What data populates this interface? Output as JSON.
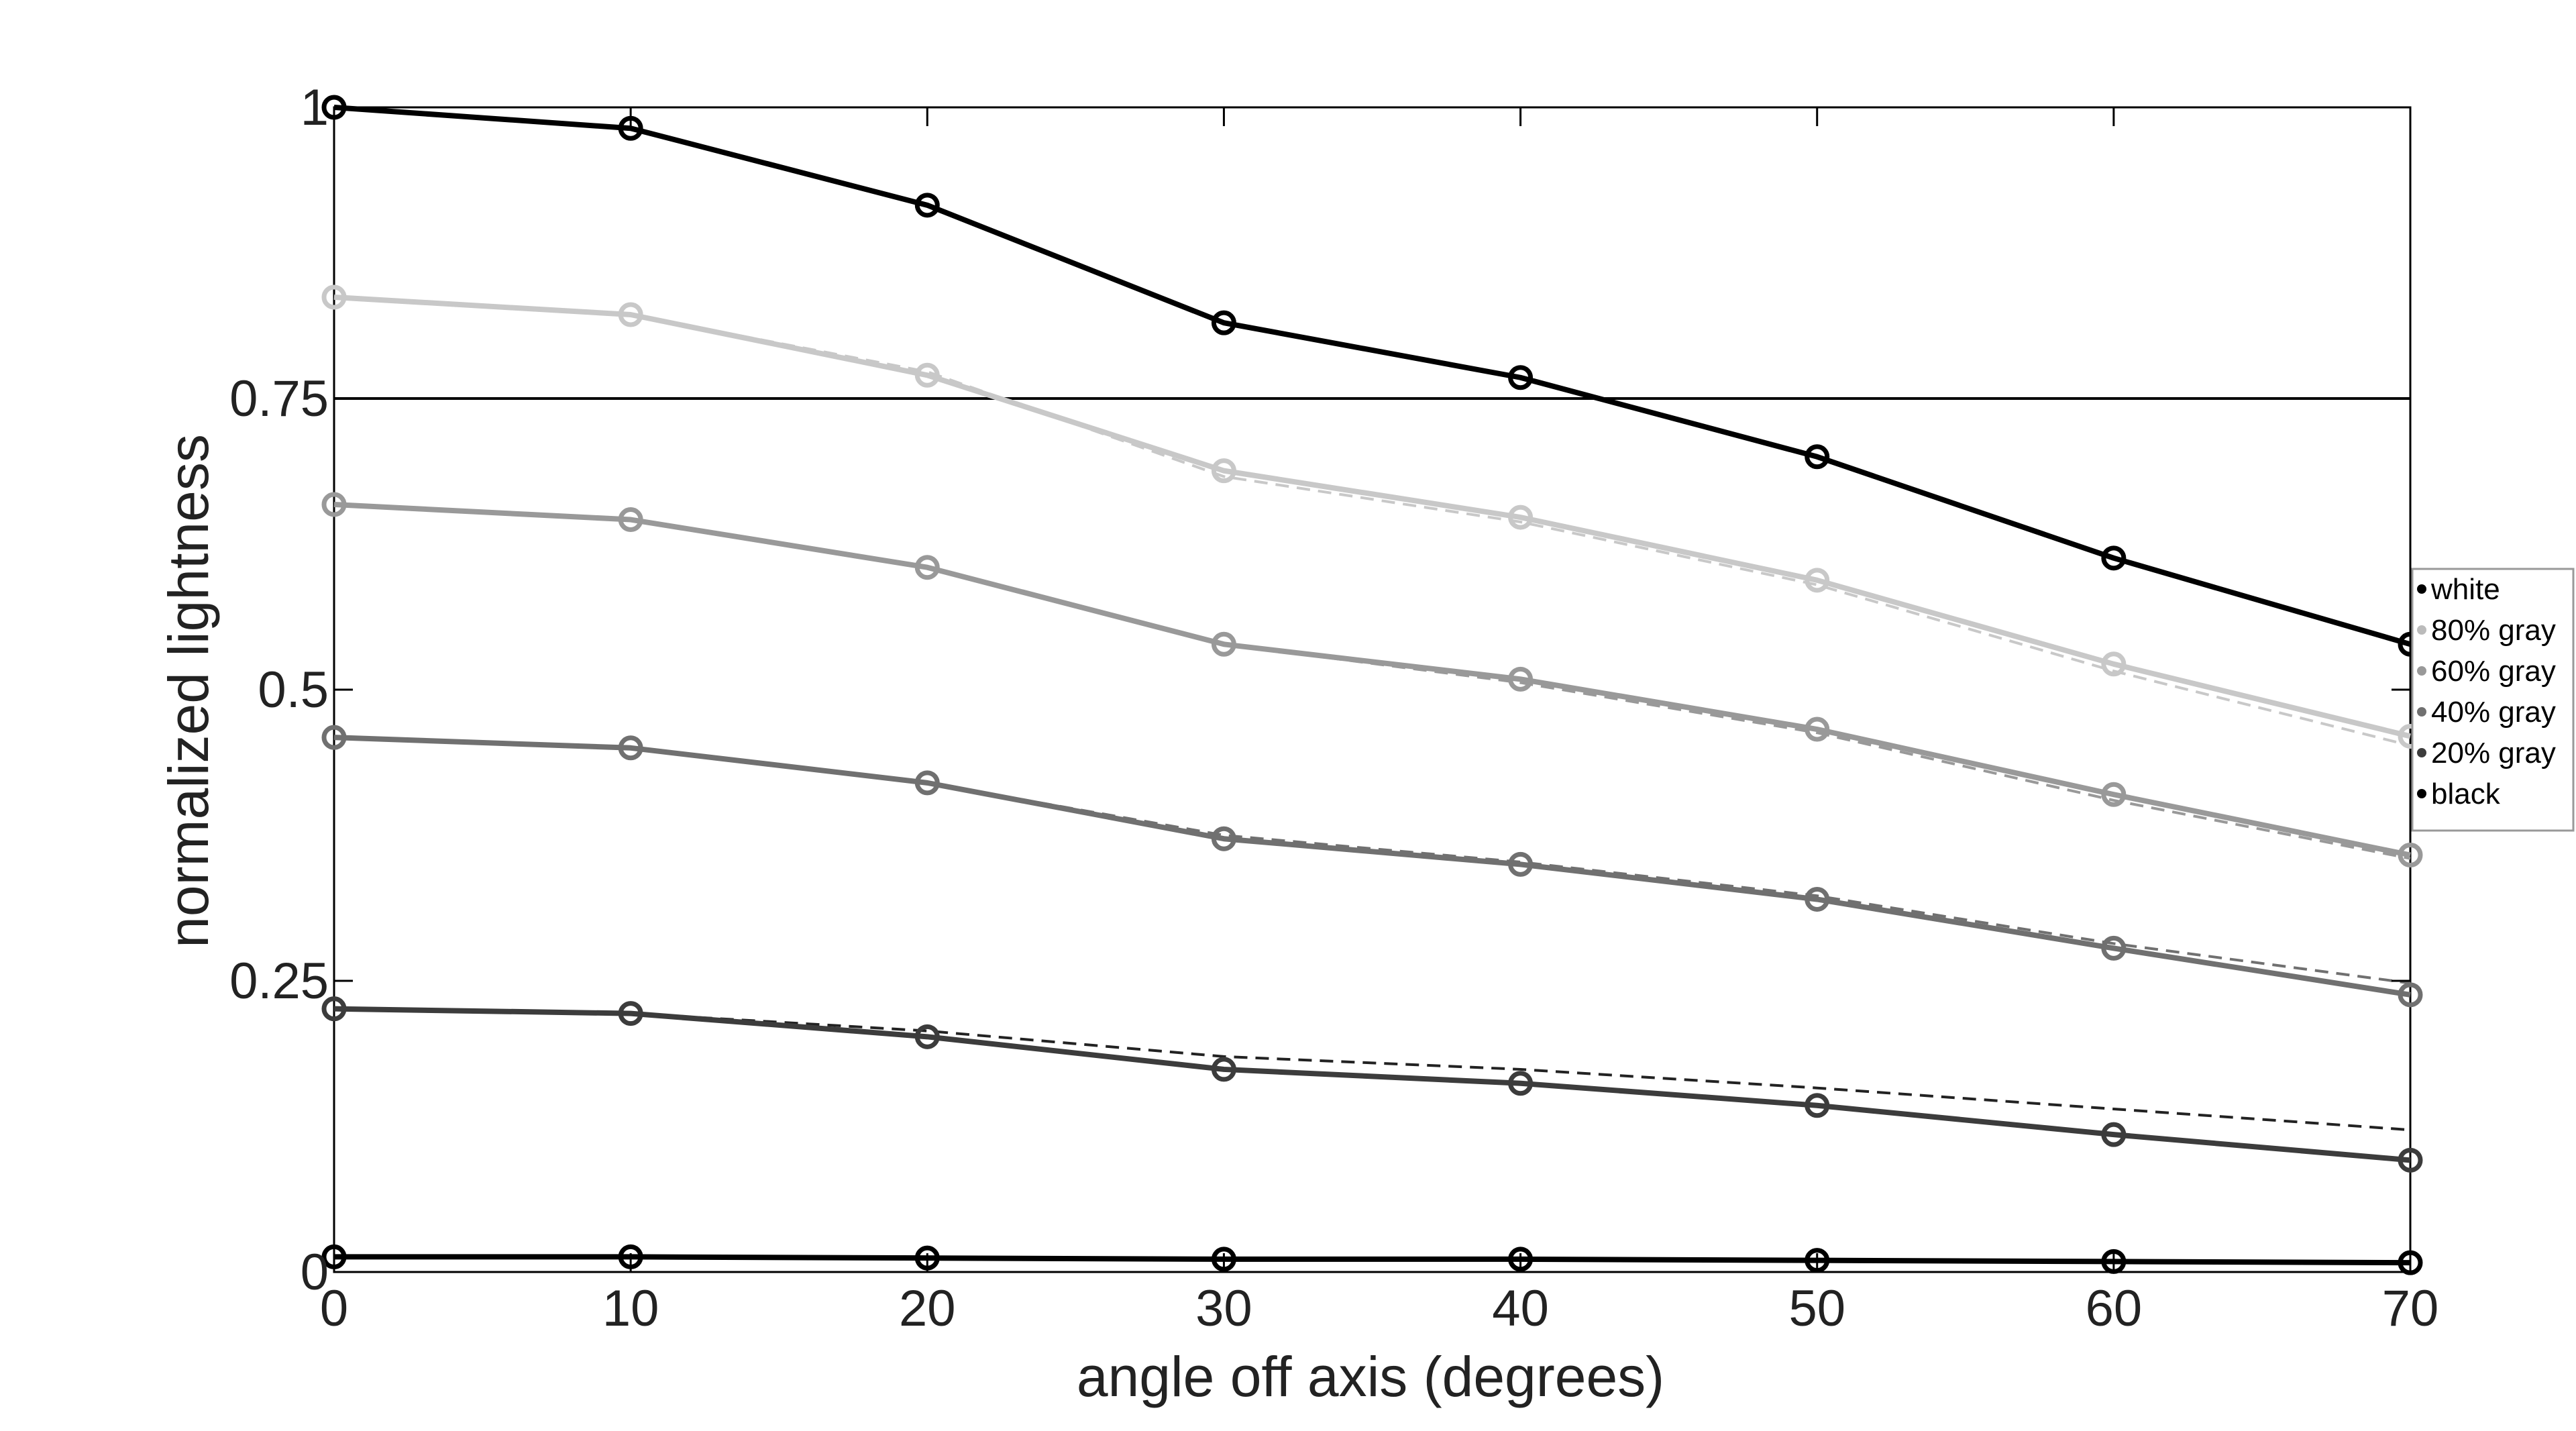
{
  "chart_data": {
    "type": "line",
    "xlabel": "angle off axis (degrees)",
    "ylabel": "normalized lightness",
    "xlim": [
      0,
      70
    ],
    "ylim": [
      0,
      1
    ],
    "xticks": [
      0,
      10,
      20,
      30,
      40,
      50,
      60,
      70
    ],
    "xtick_labels": [
      "0",
      "10",
      "20",
      "30",
      "40",
      "50",
      "60",
      "70"
    ],
    "yticks": [
      0,
      0.25,
      0.5,
      0.75,
      1
    ],
    "ytick_labels": [
      "0",
      "0.25",
      "0.5",
      "0.75",
      "1"
    ],
    "grid": false,
    "reference_line": {
      "y": 0.75
    },
    "legend_position": "right",
    "x": [
      0,
      10,
      20,
      30,
      40,
      50,
      60,
      70
    ],
    "series": [
      {
        "name": "white",
        "color": "#000000",
        "values": [
          1.0,
          0.982,
          0.916,
          0.815,
          0.768,
          0.7,
          0.613,
          0.539
        ]
      },
      {
        "name": "80% gray",
        "color": "#c8c8c8",
        "values": [
          0.837,
          0.822,
          0.77,
          0.688,
          0.648,
          0.594,
          0.522,
          0.46
        ]
      },
      {
        "name": "60% gray",
        "color": "#999999",
        "values": [
          0.659,
          0.646,
          0.605,
          0.539,
          0.509,
          0.466,
          0.41,
          0.358
        ]
      },
      {
        "name": "40% gray",
        "color": "#707070",
        "values": [
          0.459,
          0.45,
          0.42,
          0.372,
          0.35,
          0.32,
          0.278,
          0.238
        ]
      },
      {
        "name": "20% gray",
        "color": "#3c3c3c",
        "values": [
          0.226,
          0.222,
          0.202,
          0.174,
          0.162,
          0.143,
          0.118,
          0.096
        ]
      },
      {
        "name": "black",
        "color": "#000000",
        "values": [
          0.013,
          0.013,
          0.012,
          0.011,
          0.011,
          0.01,
          0.009,
          0.008
        ]
      }
    ],
    "reference_curves": [
      {
        "color": "#c8c8c8",
        "values": [
          0.837,
          0.822,
          0.773,
          0.683,
          0.644,
          0.59,
          0.516,
          0.452
        ]
      },
      {
        "color": "#999999",
        "values": [
          0.659,
          0.646,
          0.605,
          0.539,
          0.506,
          0.463,
          0.405,
          0.355
        ]
      },
      {
        "color": "#707070",
        "values": [
          0.459,
          0.45,
          0.42,
          0.375,
          0.352,
          0.323,
          0.282,
          0.248
        ]
      },
      {
        "color": "#222222",
        "values": [
          0.226,
          0.222,
          0.207,
          0.185,
          0.174,
          0.158,
          0.14,
          0.122
        ]
      }
    ]
  }
}
